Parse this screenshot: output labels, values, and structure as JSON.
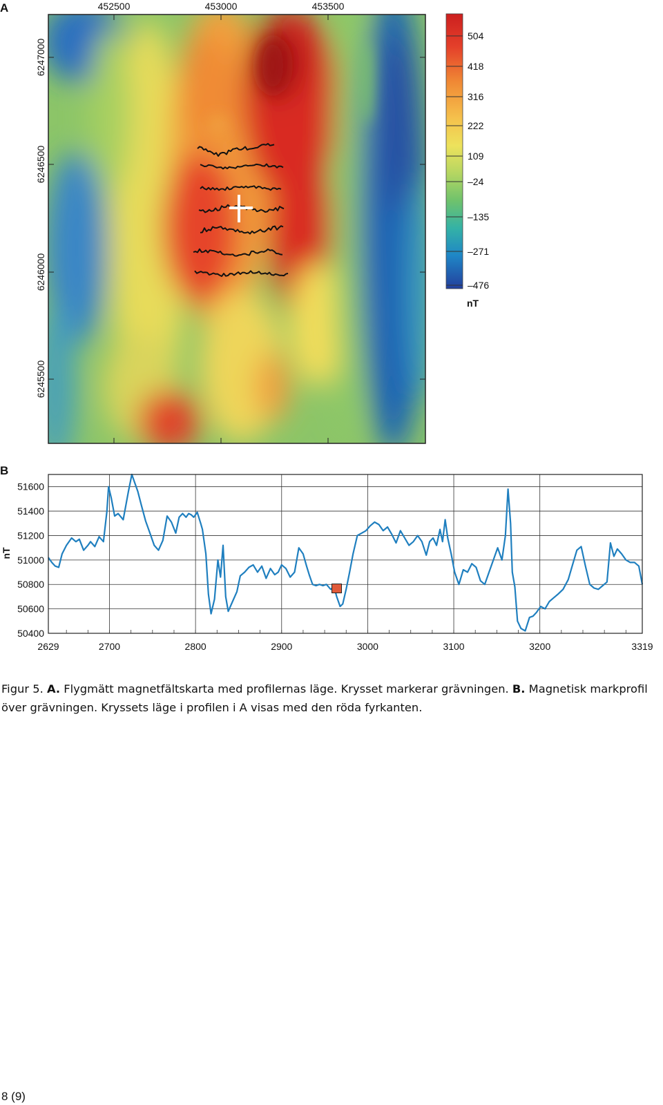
{
  "figure": {
    "panel_a_letter": "A",
    "panel_b_letter": "B",
    "caption": {
      "fig_label": "Figur 5.",
      "a_label": "A.",
      "a_text": " Flygmätt magnetfältskarta med profilernas läge. Krysset markerar grävningen. ",
      "b_label": "B.",
      "b_text": " Magnetisk markprofil över grävningen. Kryssets läge i profilen i A visas med den röda fyrkanten."
    },
    "page_number": "8 (9)"
  },
  "chart_data": [
    {
      "type": "heatmap",
      "panel": "A",
      "x_ticks": [
        "452500",
        "453000",
        "453500"
      ],
      "y_ticks": [
        "6247000",
        "6246500",
        "6246000",
        "6245500"
      ],
      "colorbar": {
        "unit": "nT",
        "ticks": [
          "504",
          "418",
          "316",
          "222",
          "109",
          "–24",
          "–135",
          "–271",
          "–476"
        ],
        "colors": [
          "#cc1f1f",
          "#ee6a2a",
          "#f6a640",
          "#f5df5a",
          "#c8d860",
          "#8cc865",
          "#3cb39c",
          "#1f86c6",
          "#2340a0"
        ]
      },
      "features": [
        "profile lines",
        "cross marking the excavation"
      ]
    },
    {
      "type": "line",
      "panel": "B",
      "ylabel": "nT",
      "x_ticks": [
        "2629",
        "2700",
        "2800",
        "2900",
        "3000",
        "3100",
        "3200",
        "3319"
      ],
      "y_ticks": [
        "51600",
        "51400",
        "51200",
        "51000",
        "50800",
        "50600",
        "50400"
      ],
      "xlim": [
        2629,
        3319
      ],
      "ylim": [
        50400,
        51700
      ],
      "grid": true,
      "line_color": "#1f7fbf",
      "marker": {
        "x": 2964,
        "y": 50770,
        "color": "#e05a3a"
      },
      "series": [
        {
          "x": [
            2629,
            2633,
            2637,
            2641,
            2645,
            2650,
            2656,
            2661,
            2665,
            2670,
            2675,
            2678,
            2683,
            2688,
            2693,
            2697,
            2699,
            2702,
            2706,
            2710,
            2716,
            2722,
            2726,
            2729,
            2733,
            2737,
            2742,
            2747,
            2752,
            2757,
            2762,
            2767,
            2772,
            2777,
            2781,
            2785,
            2789,
            2792,
            2795,
            2798,
            2802,
            2806,
            2808,
            2812,
            2815,
            2818,
            2822,
            2826,
            2829,
            2832,
            2835,
            2838,
            2843,
            2848,
            2852,
            2857,
            2862,
            2867,
            2872,
            2877,
            2882,
            2887,
            2892,
            2896,
            2900,
            2905,
            2910,
            2915,
            2920,
            2925,
            2929,
            2932,
            2936,
            2940,
            2944,
            2948,
            2952,
            2957,
            2961,
            2964,
            2968,
            2971,
            2975,
            2979,
            2983,
            2988,
            2993,
            2998,
            3003,
            3008,
            3013,
            3018,
            3023,
            3028,
            3033,
            3038,
            3043,
            3048,
            3053,
            3058,
            3063,
            3068,
            3072,
            3076,
            3080,
            3084,
            3087,
            3090,
            3093,
            3097,
            3101,
            3106,
            3111,
            3116,
            3121,
            3126,
            3131,
            3136,
            3141,
            3146,
            3151,
            3156,
            3160,
            3163,
            3166,
            3168,
            3171,
            3174,
            3178,
            3183,
            3188,
            3192,
            3196,
            3201,
            3206,
            3211,
            3216,
            3221,
            3227,
            3233,
            3238,
            3243,
            3248,
            3253,
            3258,
            3263,
            3268,
            3273,
            3278,
            3282,
            3286,
            3290,
            3295,
            3300,
            3305,
            3310,
            3315,
            3319
          ],
          "y": [
            51020,
            50980,
            50950,
            50940,
            51050,
            51120,
            51180,
            51150,
            51170,
            51080,
            51120,
            51150,
            51110,
            51190,
            51150,
            51400,
            51600,
            51510,
            51360,
            51380,
            51330,
            51560,
            51700,
            51640,
            51560,
            51450,
            51320,
            51220,
            51120,
            51080,
            51160,
            51360,
            51310,
            51220,
            51350,
            51380,
            51350,
            51380,
            51370,
            51350,
            51390,
            51300,
            51250,
            51050,
            50720,
            50560,
            50680,
            51000,
            50860,
            51120,
            50700,
            50580,
            50660,
            50740,
            50870,
            50900,
            50940,
            50960,
            50900,
            50950,
            50850,
            50930,
            50880,
            50900,
            50960,
            50930,
            50860,
            50900,
            51100,
            51050,
            50950,
            50880,
            50800,
            50790,
            50800,
            50790,
            50800,
            50760,
            50780,
            50700,
            50620,
            50640,
            50760,
            50900,
            51050,
            51200,
            51220,
            51240,
            51280,
            51310,
            51290,
            51240,
            51270,
            51210,
            51140,
            51240,
            51180,
            51120,
            51150,
            51200,
            51150,
            51040,
            51150,
            51180,
            51120,
            51250,
            51150,
            51330,
            51180,
            51050,
            50900,
            50800,
            50920,
            50900,
            50970,
            50940,
            50830,
            50800,
            50900,
            51000,
            51100,
            51000,
            51200,
            51580,
            51300,
            50900,
            50780,
            50500,
            50440,
            50420,
            50530,
            50540,
            50570,
            50620,
            50600,
            50660,
            50690,
            50720,
            50760,
            50840,
            50960,
            51080,
            51110,
            50950,
            50800,
            50770,
            50760,
            50790,
            50820,
            51140,
            51030,
            51090,
            51050,
            51000,
            50980,
            50980,
            50950,
            50800
          ]
        }
      ]
    }
  ]
}
